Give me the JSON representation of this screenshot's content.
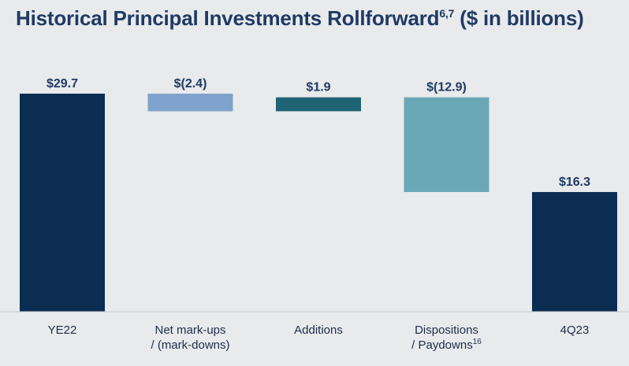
{
  "title": {
    "main": "Historical Principal Investments Rollforward",
    "superscript": "6,7",
    "unit": " ($ in billions)"
  },
  "chart_data": {
    "type": "bar",
    "subtype": "waterfall",
    "title": "Historical Principal Investments Rollforward ($ in billions)",
    "categories": [
      {
        "lines": [
          "YE22"
        ],
        "superscript": ""
      },
      {
        "lines": [
          "Net mark-ups",
          "/ (mark-downs)"
        ],
        "superscript": ""
      },
      {
        "lines": [
          "Additions"
        ],
        "superscript": ""
      },
      {
        "lines": [
          "Dispositions",
          "/ Paydowns"
        ],
        "superscript": "16"
      },
      {
        "lines": [
          "4Q23"
        ],
        "superscript": ""
      }
    ],
    "values": [
      29.7,
      -2.4,
      1.9,
      -12.9,
      16.3
    ],
    "value_labels": [
      "$29.7",
      "$(2.4)",
      "$1.9",
      "$(12.9)",
      "$16.3"
    ],
    "bar_kinds": [
      "total",
      "delta",
      "delta",
      "delta",
      "total"
    ],
    "colors": [
      "#0b2d52",
      "#7fa3cc",
      "#1f6475",
      "#6aa8b8",
      "#0b2d52"
    ],
    "ylim": [
      0,
      29.7
    ],
    "grid": false,
    "legend": "none"
  }
}
